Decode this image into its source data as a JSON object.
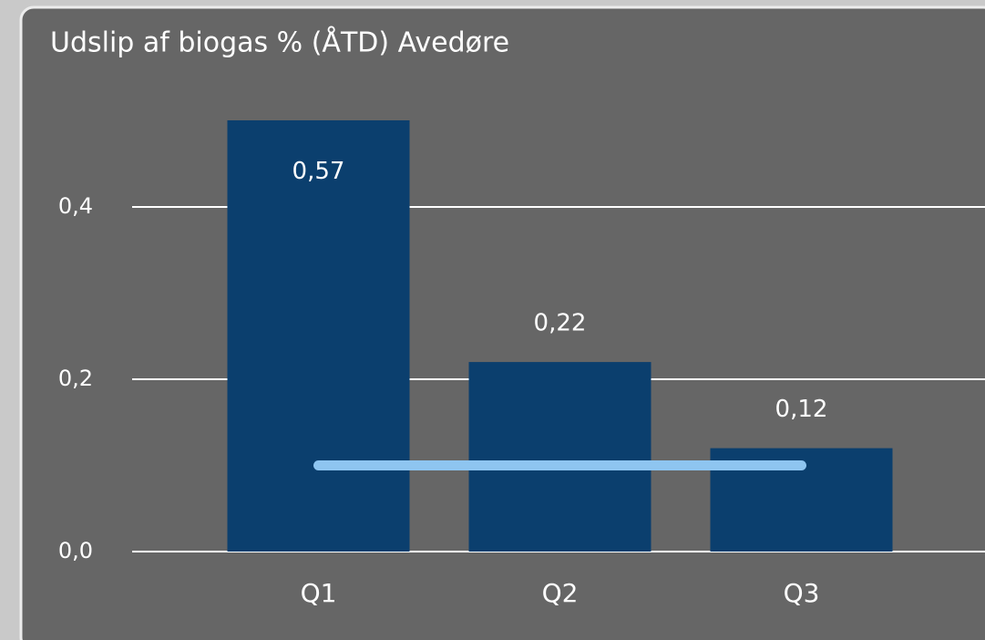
{
  "chart_data": {
    "type": "bar",
    "title": "Udslip af biogas % (ÅTD) Avedøre",
    "categories": [
      "Q1",
      "Q2",
      "Q3"
    ],
    "values": [
      0.57,
      0.22,
      0.12
    ],
    "value_labels": [
      "0,57",
      "0,22",
      "0,12"
    ],
    "color": "#0b3f6e",
    "lines": [
      {
        "color": "#8ec5f0",
        "values": [
          0.1,
          0.1,
          0.1
        ]
      }
    ],
    "ylim": [
      0,
      0.5
    ],
    "yticks": [
      {
        "value": 0,
        "label": "0,0"
      },
      {
        "value": 0.2,
        "label": "0,2"
      },
      {
        "value": 0.4,
        "label": "0,4"
      }
    ],
    "grid": true
  }
}
